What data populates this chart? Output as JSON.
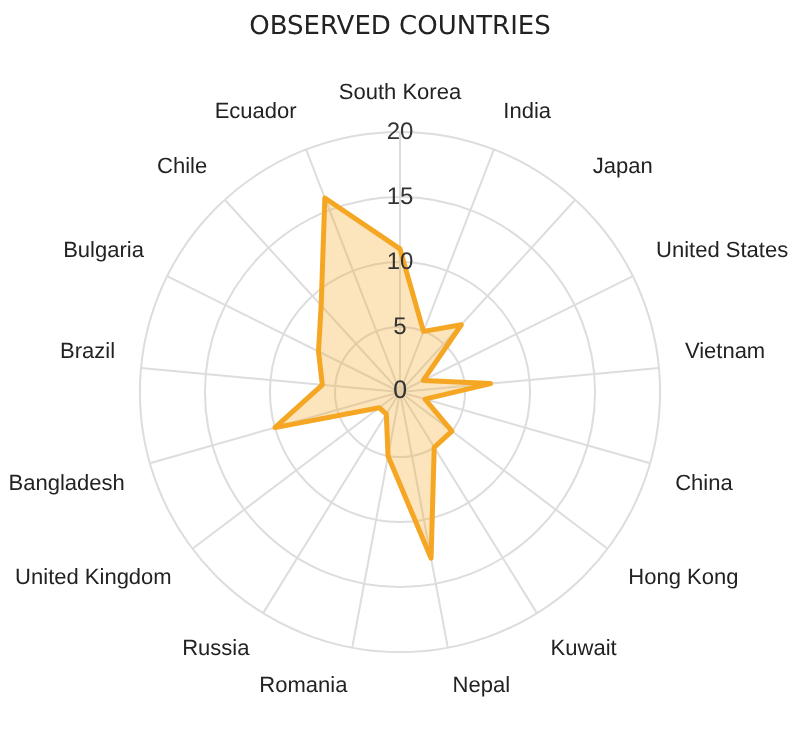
{
  "chart_data": {
    "type": "radar",
    "title": "OBSERVED COUNTRIES",
    "categories": [
      "South Korea",
      "India",
      "Japan",
      "United States",
      "Vietnam",
      "China",
      "Hong Kong",
      "Kuwait",
      "Nepal",
      "Romania",
      "Russia",
      "United Kingdom",
      "Bangladesh",
      "Brazil",
      "Bulgaria",
      "Chile",
      "Ecuador"
    ],
    "series": [
      {
        "color": "#f5a623",
        "values": [
          11,
          5,
          7,
          2,
          7,
          2,
          5,
          5,
          13,
          5,
          2,
          2,
          10,
          6,
          7,
          9,
          16
        ]
      }
    ],
    "ylim": [
      0,
      20
    ],
    "yticks": [
      0,
      5,
      10,
      15,
      20
    ],
    "grid": true,
    "legend": false,
    "marker": "none"
  }
}
